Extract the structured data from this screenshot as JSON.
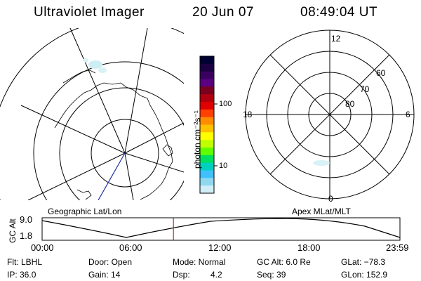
{
  "header": {
    "instrument": "Ultraviolet Imager",
    "date": "20 Jun 07",
    "time": "08:49:04 UT"
  },
  "left_panel": {
    "label": "Geographic Lat/Lon"
  },
  "right_panel": {
    "label": "Apex MLat/MLT",
    "mlt_labels": {
      "top": "12",
      "left": "18",
      "right": "6",
      "bottom": "0"
    },
    "lat_labels": [
      "60",
      "70",
      "80"
    ]
  },
  "colorbar": {
    "unit": "photon cm⁻²s⁻¹",
    "ticks": [
      "100",
      "10"
    ],
    "colors": [
      "#000033",
      "#1a0040",
      "#3a0060",
      "#5a0080",
      "#7a0020",
      "#b00010",
      "#e00000",
      "#ff4000",
      "#ff8c00",
      "#ffc000",
      "#ffff00",
      "#c0ff00",
      "#60ff00",
      "#00e060",
      "#00d0c0",
      "#40c0ff",
      "#90d8f0",
      "#d0eef8"
    ]
  },
  "altitude_strip": {
    "axis_label": "GC Alt",
    "max": "9.0",
    "min": "1.8",
    "time_ticks": [
      "00:00",
      "06:00",
      "12:00",
      "18:00",
      "23:59"
    ],
    "current_time_fraction": 0.367
  },
  "footer": {
    "flt": "Flt: LBHL",
    "ip": "IP: 36.0",
    "door": "Door: Open",
    "gain": "Gain: 14",
    "mode": "Mode: Normal",
    "dsp_label": "Dsp:",
    "dsp_value": "4.2",
    "gc_alt": "GC Alt: 6.0 Re",
    "seq": "Seq: 39",
    "glat": "GLat: −78.3",
    "glon": "GLon: 152.9"
  }
}
